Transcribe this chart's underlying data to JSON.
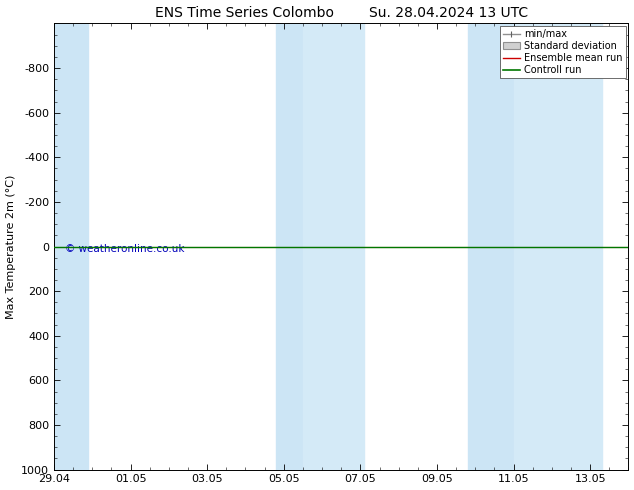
{
  "title_left": "ENS Time Series Colombo",
  "title_right": "Su. 28.04.2024 13 UTC",
  "ylabel": "Max Temperature 2m (°C)",
  "ylim_min": -1000,
  "ylim_max": 1000,
  "yticks": [
    -800,
    -600,
    -400,
    -200,
    0,
    200,
    400,
    600,
    800,
    1000
  ],
  "xtick_labels": [
    "29.04",
    "01.05",
    "03.05",
    "05.05",
    "07.05",
    "09.05",
    "11.05",
    "13.05"
  ],
  "xtick_positions": [
    0,
    2,
    4,
    6,
    8,
    10,
    12,
    14
  ],
  "xlim_min": 0,
  "xlim_max": 15,
  "band_ranges": [
    [
      0,
      0.8
    ],
    [
      5.8,
      6.5
    ],
    [
      6.5,
      8.0
    ],
    [
      11.0,
      12.0
    ],
    [
      12.0,
      14.2
    ]
  ],
  "band_colors": [
    "#ccdff5",
    "#ccdff5",
    "#d8eaf8",
    "#ccdff5",
    "#d8eaf8"
  ],
  "control_run_y": 0,
  "ensemble_mean_y": 0,
  "watermark": "© weatheronline.co.uk",
  "watermark_color": "#0000bb",
  "background_color": "#ffffff",
  "legend_items": [
    "min/max",
    "Standard deviation",
    "Ensemble mean run",
    "Controll run"
  ],
  "legend_line_colors": [
    "#909090",
    "#c0c0c0",
    "#cc0000",
    "#007700"
  ],
  "legend_fill_colors": [
    "#ffffff",
    "#c8c8c8",
    "#ffffff",
    "#ffffff"
  ],
  "control_run_color": "#007700",
  "ensemble_mean_color": "#cc0000",
  "title_fontsize": 10,
  "axis_fontsize": 8,
  "tick_fontsize": 8
}
